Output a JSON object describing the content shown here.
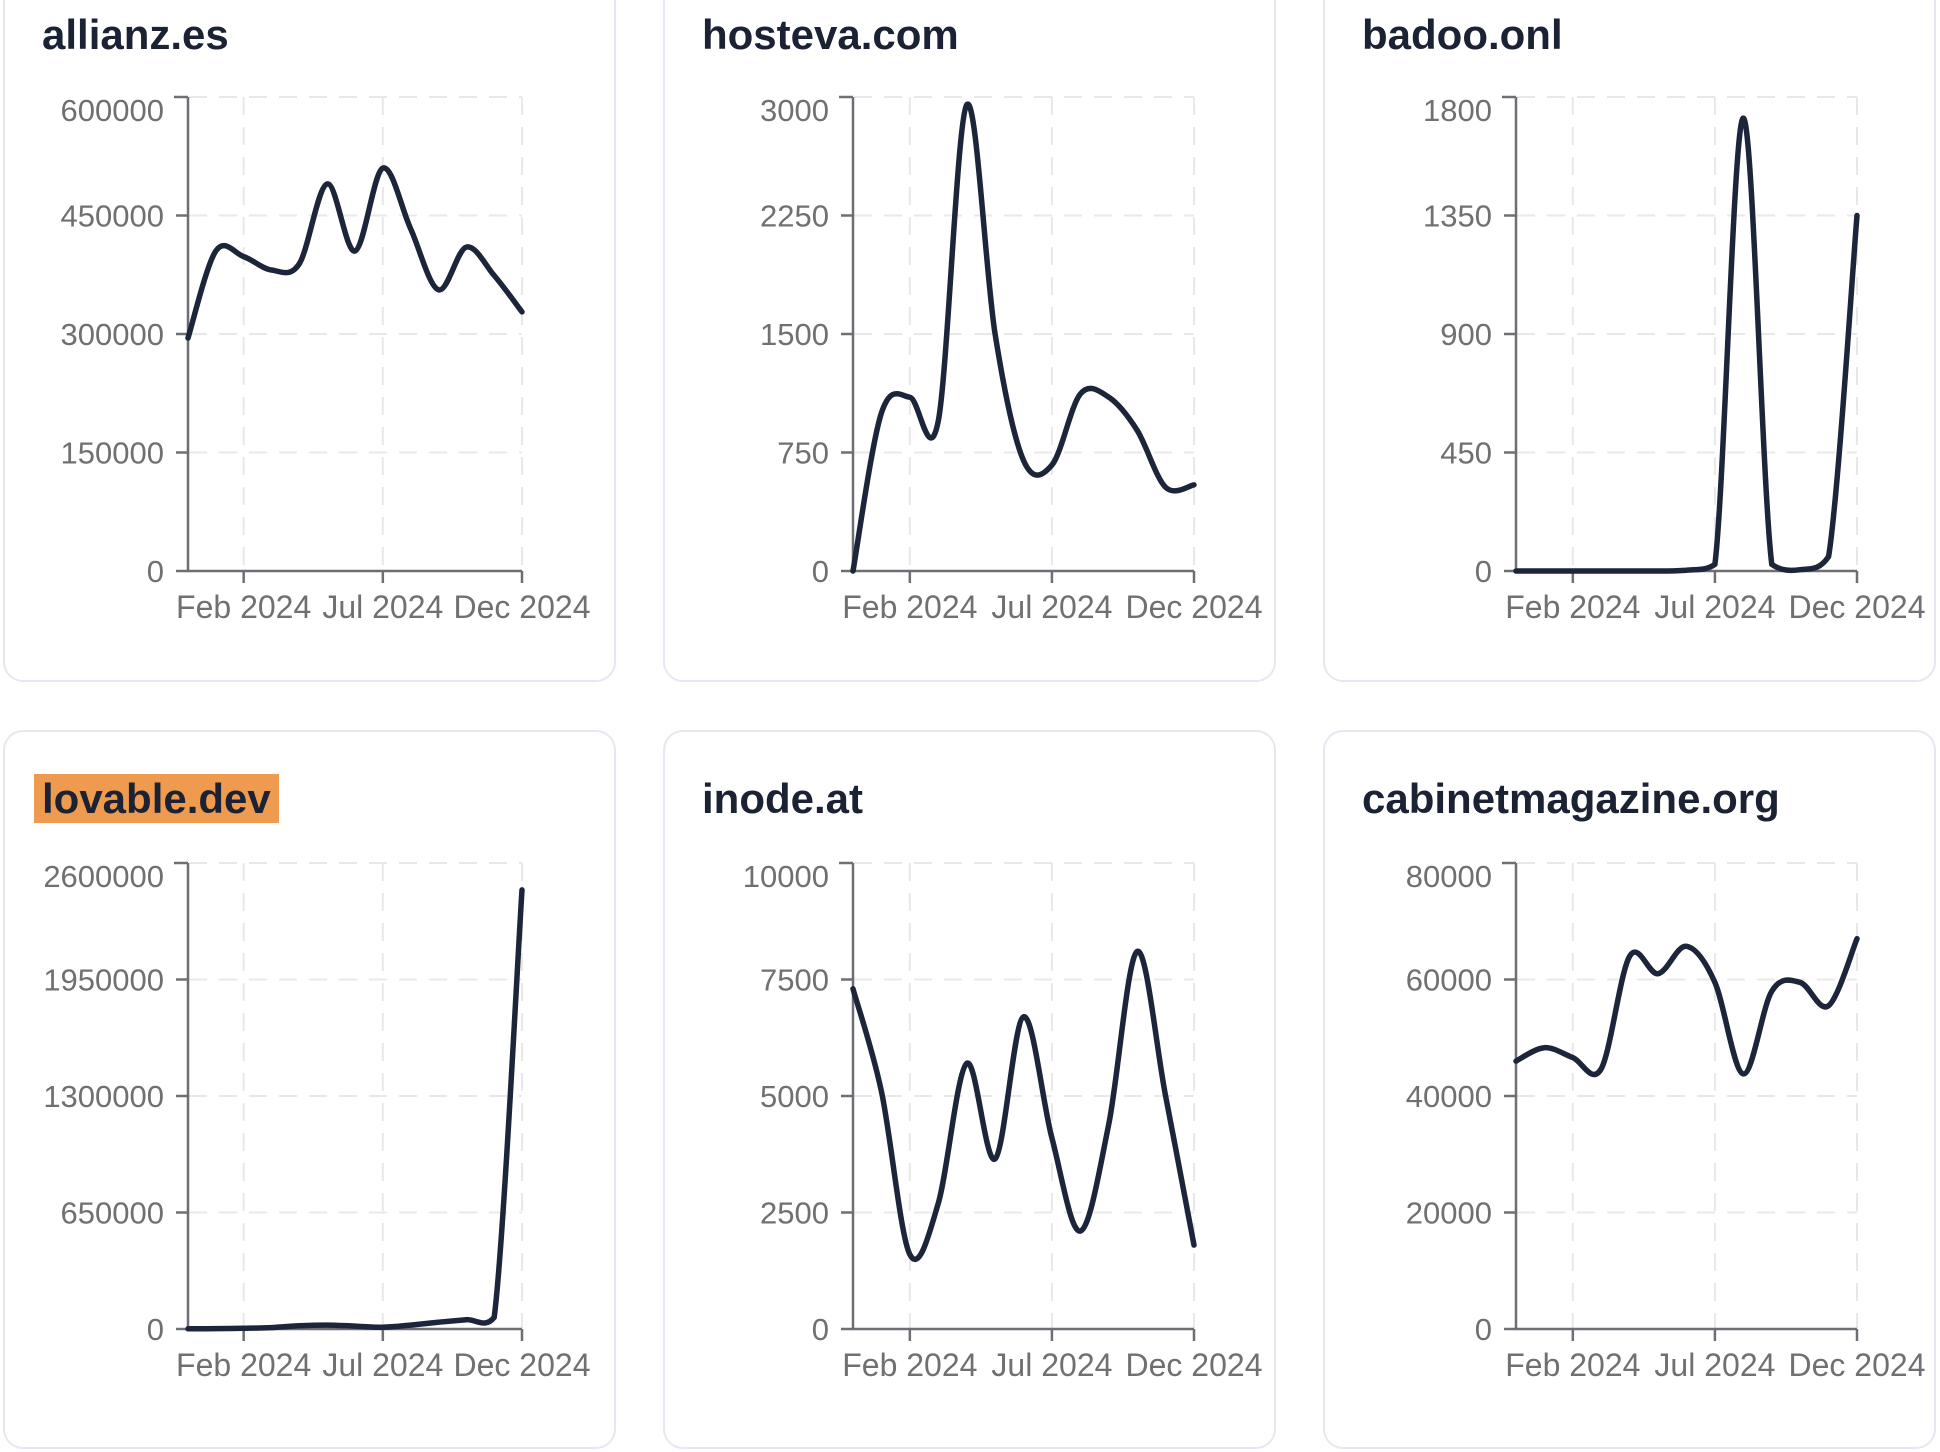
{
  "page": {
    "background": "#ffffff",
    "x_axis_tick_labels": [
      "Feb 2024",
      "Jul 2024",
      "Dec 2024"
    ]
  },
  "colors": {
    "page_bg": "#ffffff",
    "card_border": "#e4e8f1",
    "title": "#1a2233",
    "line": "#1c2539",
    "axis": "#6d6f74",
    "tick_label": "#707070",
    "grid": "#e8e8e8",
    "highlight": "#ee9b4f"
  },
  "chart_data": [
    {
      "type": "line",
      "title": "allianz.es",
      "highlighted": false,
      "x": [
        "Dec 2023",
        "Jan 2024",
        "Feb 2024",
        "Mar 2024",
        "Apr 2024",
        "May 2024",
        "Jun 2024",
        "Jul 2024",
        "Aug 2024",
        "Sep 2024",
        "Oct 2024",
        "Nov 2024",
        "Dec 2024"
      ],
      "values": [
        295000,
        405000,
        398000,
        381000,
        389000,
        490000,
        405000,
        510000,
        433000,
        356000,
        410000,
        374000,
        328000
      ],
      "y_ticks": [
        0,
        150000,
        300000,
        450000,
        600000
      ],
      "ylim": [
        0,
        600000
      ],
      "x_tick_labels": [
        "Feb 2024",
        "Jul 2024",
        "Dec 2024"
      ],
      "grid": true,
      "legend": "none"
    },
    {
      "type": "line",
      "title": "hosteva.com",
      "highlighted": false,
      "x": [
        "Dec 2023",
        "Jan 2024",
        "Feb 2024",
        "Mar 2024",
        "Apr 2024",
        "May 2024",
        "Jun 2024",
        "Jul 2024",
        "Aug 2024",
        "Sep 2024",
        "Oct 2024",
        "Nov 2024",
        "Dec 2024"
      ],
      "values": [
        0,
        1000,
        1100,
        950,
        2950,
        1500,
        700,
        670,
        1120,
        1100,
        890,
        530,
        545
      ],
      "y_ticks": [
        0,
        750,
        1500,
        2250,
        3000
      ],
      "ylim": [
        0,
        3000
      ],
      "x_tick_labels": [
        "Feb 2024",
        "Jul 2024",
        "Dec 2024"
      ],
      "grid": true,
      "legend": "none"
    },
    {
      "type": "line",
      "title": "badoo.onl",
      "highlighted": false,
      "x": [
        "Dec 2023",
        "Jan 2024",
        "Feb 2024",
        "Mar 2024",
        "Apr 2024",
        "May 2024",
        "Jun 2024",
        "Jul 2024",
        "Aug 2024",
        "Sep 2024",
        "Oct 2024",
        "Nov 2024",
        "Dec 2024"
      ],
      "values": [
        0,
        0,
        0,
        0,
        0,
        0,
        3,
        25,
        1720,
        25,
        5,
        55,
        1350
      ],
      "y_ticks": [
        0,
        450,
        900,
        1350,
        1800
      ],
      "ylim": [
        0,
        1800
      ],
      "x_tick_labels": [
        "Feb 2024",
        "Jul 2024",
        "Dec 2024"
      ],
      "grid": true,
      "legend": "none"
    },
    {
      "type": "line",
      "title": "lovable.dev",
      "highlighted": true,
      "x": [
        "Dec 2023",
        "Jan 2024",
        "Feb 2024",
        "Mar 2024",
        "Apr 2024",
        "May 2024",
        "Jun 2024",
        "Jul 2024",
        "Aug 2024",
        "Sep 2024",
        "Oct 2024",
        "Nov 2024",
        "Dec 2024"
      ],
      "values": [
        1000,
        2000,
        4000,
        8000,
        18000,
        22000,
        16000,
        10000,
        22000,
        38000,
        52000,
        65000,
        2450000
      ],
      "y_ticks": [
        0,
        650000,
        1300000,
        1950000,
        2600000
      ],
      "ylim": [
        0,
        2600000
      ],
      "x_tick_labels": [
        "Feb 2024",
        "Jul 2024",
        "Dec 2024"
      ],
      "grid": true,
      "legend": "none"
    },
    {
      "type": "line",
      "title": "inode.at",
      "highlighted": false,
      "x": [
        "Dec 2023",
        "Jan 2024",
        "Feb 2024",
        "Mar 2024",
        "Apr 2024",
        "May 2024",
        "Jun 2024",
        "Jul 2024",
        "Aug 2024",
        "Sep 2024",
        "Oct 2024",
        "Nov 2024",
        "Dec 2024"
      ],
      "values": [
        7300,
        5100,
        1600,
        2700,
        5700,
        3650,
        6700,
        4100,
        2100,
        4400,
        8100,
        5000,
        1800
      ],
      "y_ticks": [
        0,
        2500,
        5000,
        7500,
        10000
      ],
      "ylim": [
        0,
        10000
      ],
      "x_tick_labels": [
        "Feb 2024",
        "Jul 2024",
        "Dec 2024"
      ],
      "grid": true,
      "legend": "none"
    },
    {
      "type": "line",
      "title": "cabinetmagazine.org",
      "highlighted": false,
      "x": [
        "Dec 2023",
        "Jan 2024",
        "Feb 2024",
        "Mar 2024",
        "Apr 2024",
        "May 2024",
        "Jun 2024",
        "Jul 2024",
        "Aug 2024",
        "Sep 2024",
        "Oct 2024",
        "Nov 2024",
        "Dec 2024"
      ],
      "values": [
        46000,
        48300,
        46600,
        44700,
        64000,
        61000,
        65700,
        59500,
        43800,
        58000,
        59500,
        55500,
        67000
      ],
      "y_ticks": [
        0,
        20000,
        40000,
        60000,
        80000
      ],
      "ylim": [
        0,
        80000
      ],
      "x_tick_labels": [
        "Feb 2024",
        "Jul 2024",
        "Dec 2024"
      ],
      "grid": true,
      "legend": "none"
    }
  ]
}
